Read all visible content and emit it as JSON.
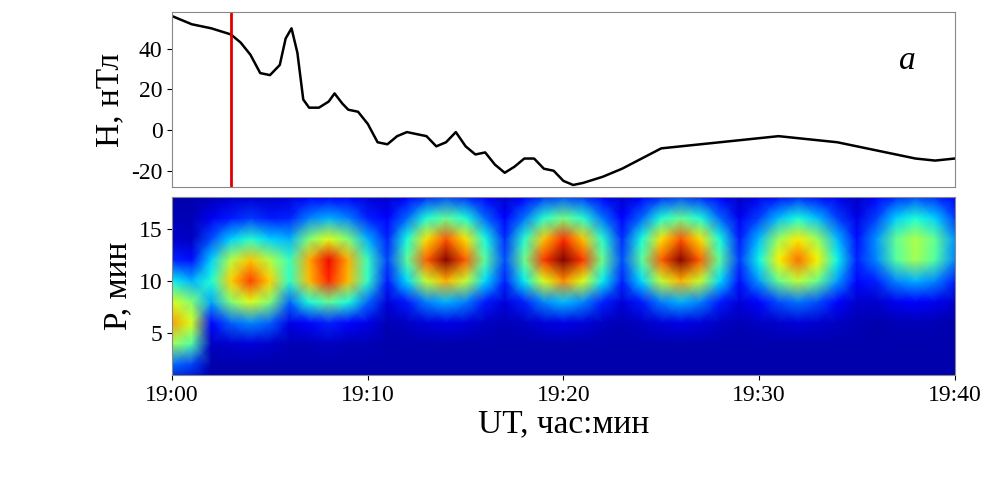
{
  "chart_data": [
    {
      "type": "line",
      "y_label": "H, нТл",
      "annotation": "a",
      "color": "#000000",
      "tick_labels": "y",
      "x": [
        0,
        1,
        2,
        3,
        3.5,
        4,
        4.5,
        5,
        5.5,
        5.8,
        6.1,
        6.4,
        6.7,
        7,
        7.5,
        8,
        8.3,
        8.7,
        9,
        9.5,
        10,
        10.5,
        11,
        11.5,
        12,
        12.5,
        13,
        13.5,
        14,
        14.5,
        15,
        15.5,
        16,
        16.5,
        17,
        17.5,
        18,
        18.5,
        19,
        19.5,
        20,
        20.5,
        21,
        22,
        23,
        24,
        25,
        26,
        27,
        28,
        29,
        30,
        31,
        32,
        33,
        34,
        35,
        36,
        37,
        38,
        39,
        40
      ],
      "values": [
        56,
        52,
        50,
        47,
        43,
        37,
        28,
        27,
        32,
        45,
        50,
        38,
        15,
        11,
        11,
        14,
        18,
        13,
        10,
        9,
        3,
        -6,
        -7,
        -3,
        -1,
        -2,
        -3,
        -8,
        -6,
        -1,
        -8,
        -12,
        -11,
        -17,
        -21,
        -18,
        -14,
        -14,
        -19,
        -20,
        -25,
        -27,
        -26,
        -23,
        -19,
        -14,
        -9,
        -8,
        -7,
        -6,
        -5,
        -4,
        -3,
        -4,
        -5,
        -6,
        -8,
        -10,
        -12,
        -14,
        -15,
        -14
      ],
      "vertical_line": {
        "x": 3,
        "color": "#e00000"
      },
      "xlim": [
        0,
        40
      ],
      "ylim": [
        -28,
        58
      ],
      "yticks": [
        -20,
        0,
        20,
        40
      ]
    },
    {
      "type": "heatmap",
      "x_label": "UT, час:мин",
      "y_label": "P, мин",
      "x": [
        0,
        1,
        2,
        3,
        4,
        5,
        6,
        7,
        8,
        9,
        10,
        11,
        12,
        13,
        14,
        15,
        16,
        17,
        18,
        19,
        20,
        21,
        22,
        23,
        24,
        25,
        26,
        27,
        28,
        29,
        30,
        31,
        32,
        33,
        34,
        35,
        36,
        37,
        38,
        39,
        40
      ],
      "y": [
        0,
        2,
        4,
        6,
        8,
        10,
        12,
        14,
        16,
        18
      ],
      "cells": [
        [
          0.04,
          0.04,
          0.04,
          0.04,
          0.04,
          0.04,
          0.04,
          0.04,
          0.04,
          0.04,
          0.04,
          0.04,
          0.04,
          0.04,
          0.04,
          0.04,
          0.04,
          0.04,
          0.04,
          0.04,
          0.04,
          0.04,
          0.04,
          0.04,
          0.04,
          0.04,
          0.04,
          0.04,
          0.04,
          0.04,
          0.04,
          0.04,
          0.04,
          0.04,
          0.04,
          0.04,
          0.04,
          0.04,
          0.04,
          0.04,
          0.04
        ],
        [
          0.23,
          0.19,
          0.04,
          0.04,
          0.04,
          0.04,
          0.04,
          0.04,
          0.04,
          0.04,
          0.04,
          0.04,
          0.04,
          0.04,
          0.04,
          0.04,
          0.04,
          0.04,
          0.04,
          0.04,
          0.04,
          0.04,
          0.04,
          0.04,
          0.04,
          0.04,
          0.04,
          0.04,
          0.04,
          0.04,
          0.04,
          0.04,
          0.04,
          0.04,
          0.04,
          0.04,
          0.04,
          0.04,
          0.04,
          0.04,
          0.04
        ],
        [
          0.54,
          0.45,
          0.06,
          0.07,
          0.08,
          0.07,
          0.05,
          0.05,
          0.06,
          0.05,
          0.05,
          0.04,
          0.04,
          0.04,
          0.04,
          0.04,
          0.04,
          0.04,
          0.04,
          0.04,
          0.04,
          0.04,
          0.04,
          0.04,
          0.04,
          0.04,
          0.04,
          0.04,
          0.04,
          0.04,
          0.04,
          0.04,
          0.04,
          0.04,
          0.04,
          0.04,
          0.04,
          0.04,
          0.04,
          0.04,
          0.04
        ],
        [
          0.74,
          0.61,
          0.13,
          0.22,
          0.26,
          0.22,
          0.09,
          0.13,
          0.16,
          0.13,
          0.09,
          0.05,
          0.06,
          0.08,
          0.09,
          0.08,
          0.06,
          0.05,
          0.06,
          0.08,
          0.09,
          0.08,
          0.06,
          0.05,
          0.06,
          0.08,
          0.09,
          0.08,
          0.06,
          0.05,
          0.06,
          0.07,
          0.08,
          0.07,
          0.06,
          0.05,
          0.04,
          0.05,
          0.05,
          0.05,
          0.04
        ],
        [
          0.61,
          0.51,
          0.29,
          0.51,
          0.62,
          0.51,
          0.23,
          0.39,
          0.47,
          0.39,
          0.23,
          0.08,
          0.15,
          0.25,
          0.3,
          0.25,
          0.15,
          0.08,
          0.16,
          0.26,
          0.31,
          0.26,
          0.16,
          0.08,
          0.15,
          0.25,
          0.3,
          0.25,
          0.15,
          0.08,
          0.13,
          0.2,
          0.24,
          0.2,
          0.13,
          0.07,
          0.07,
          0.1,
          0.11,
          0.1,
          0.07
        ],
        [
          0.36,
          0.3,
          0.39,
          0.69,
          0.84,
          0.69,
          0.41,
          0.71,
          0.87,
          0.71,
          0.41,
          0.15,
          0.34,
          0.59,
          0.72,
          0.59,
          0.34,
          0.16,
          0.36,
          0.62,
          0.76,
          0.62,
          0.36,
          0.16,
          0.34,
          0.59,
          0.72,
          0.59,
          0.34,
          0.14,
          0.28,
          0.48,
          0.58,
          0.48,
          0.28,
          0.13,
          0.16,
          0.26,
          0.3,
          0.26,
          0.16
        ],
        [
          0.16,
          0.14,
          0.33,
          0.57,
          0.7,
          0.57,
          0.42,
          0.73,
          0.9,
          0.73,
          0.42,
          0.19,
          0.46,
          0.81,
          0.99,
          0.81,
          0.46,
          0.2,
          0.48,
          0.85,
          1.0,
          0.85,
          0.48,
          0.2,
          0.46,
          0.81,
          0.99,
          0.81,
          0.46,
          0.18,
          0.37,
          0.65,
          0.79,
          0.65,
          0.37,
          0.16,
          0.26,
          0.45,
          0.55,
          0.45,
          0.26
        ],
        [
          0.07,
          0.06,
          0.2,
          0.33,
          0.4,
          0.33,
          0.3,
          0.51,
          0.62,
          0.51,
          0.3,
          0.16,
          0.38,
          0.67,
          0.82,
          0.67,
          0.38,
          0.17,
          0.4,
          0.7,
          0.86,
          0.7,
          0.4,
          0.17,
          0.38,
          0.67,
          0.82,
          0.67,
          0.38,
          0.15,
          0.31,
          0.54,
          0.66,
          0.54,
          0.31,
          0.14,
          0.27,
          0.47,
          0.56,
          0.47,
          0.27
        ],
        [
          0.05,
          0.05,
          0.1,
          0.15,
          0.18,
          0.15,
          0.16,
          0.25,
          0.3,
          0.25,
          0.16,
          0.11,
          0.23,
          0.39,
          0.47,
          0.39,
          0.23,
          0.11,
          0.24,
          0.4,
          0.49,
          0.4,
          0.24,
          0.11,
          0.23,
          0.39,
          0.47,
          0.39,
          0.23,
          0.1,
          0.19,
          0.31,
          0.38,
          0.31,
          0.19,
          0.09,
          0.19,
          0.33,
          0.39,
          0.33,
          0.19
        ],
        [
          0.04,
          0.04,
          0.05,
          0.07,
          0.07,
          0.07,
          0.08,
          0.11,
          0.12,
          0.11,
          0.08,
          0.07,
          0.11,
          0.17,
          0.2,
          0.17,
          0.11,
          0.07,
          0.11,
          0.18,
          0.21,
          0.18,
          0.11,
          0.07,
          0.11,
          0.17,
          0.2,
          0.17,
          0.11,
          0.06,
          0.1,
          0.14,
          0.17,
          0.14,
          0.1,
          0.06,
          0.11,
          0.17,
          0.2,
          0.17,
          0.11
        ]
      ],
      "zlim": [
        0,
        1
      ],
      "xlim": [
        0,
        40
      ],
      "ylim": [
        1,
        18
      ],
      "xticks": [
        {
          "value": 0,
          "label": "19:00"
        },
        {
          "value": 10,
          "label": "19:10"
        },
        {
          "value": 20,
          "label": "19:20"
        },
        {
          "value": 30,
          "label": "19:30"
        },
        {
          "value": 40,
          "label": "19:40"
        }
      ],
      "yticks": [
        5,
        10,
        15
      ]
    }
  ]
}
